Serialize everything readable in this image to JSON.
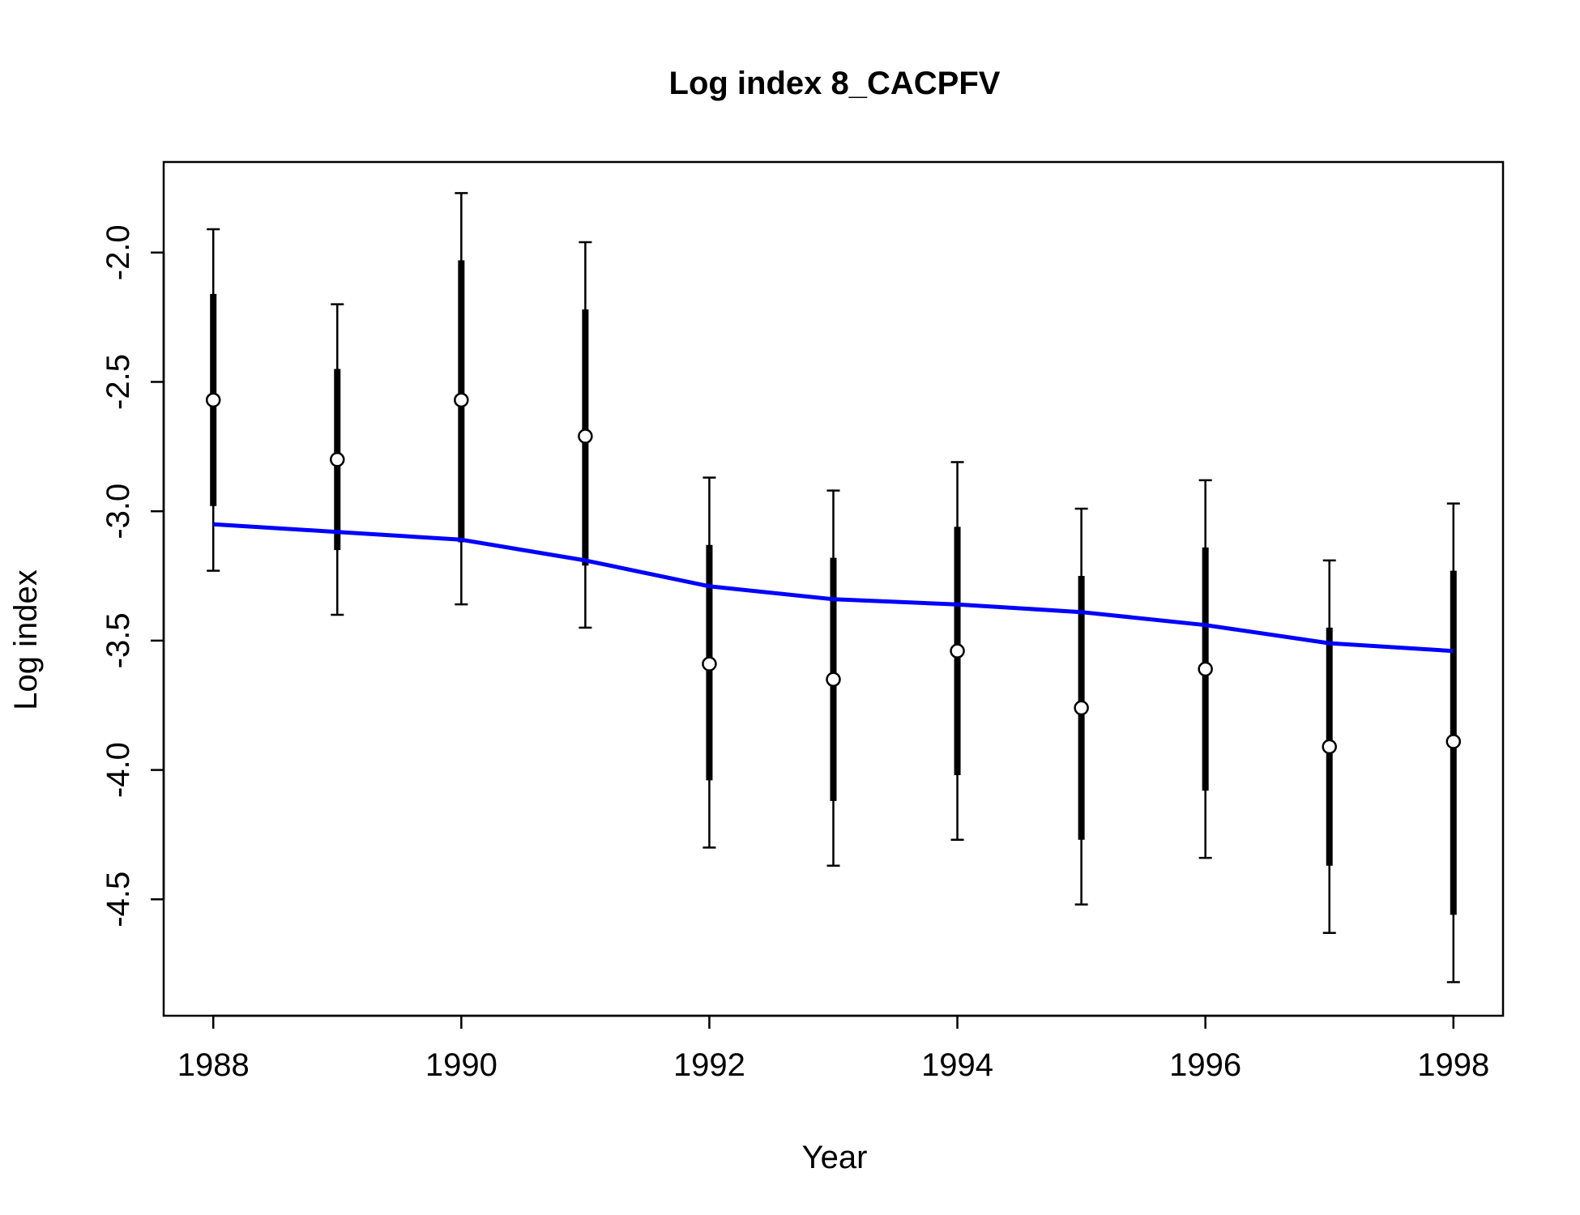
{
  "chart_data": {
    "type": "scatter",
    "title": "Log index 8_CACPFV",
    "xlabel": "Year",
    "ylabel": "Log index",
    "xlim": [
      1987.6,
      1998.4
    ],
    "ylim": [
      -4.95,
      -1.65
    ],
    "xticks": [
      1988,
      1990,
      1992,
      1994,
      1996,
      1998
    ],
    "xtick_labels": [
      "1988",
      "1990",
      "1992",
      "1994",
      "1996",
      "1998"
    ],
    "yticks": [
      -2.0,
      -2.5,
      -3.0,
      -3.5,
      -4.0,
      -4.5
    ],
    "ytick_labels": [
      "-2.0",
      "-2.5",
      "-3.0",
      "-3.5",
      "-4.0",
      "-4.5"
    ],
    "grid": false,
    "series": [
      {
        "kind": "observed_points_with_intervals",
        "color": "#000000",
        "x": [
          1988,
          1989,
          1990,
          1991,
          1992,
          1993,
          1994,
          1995,
          1996,
          1997,
          1998
        ],
        "values": [
          -2.57,
          -2.8,
          -2.57,
          -2.71,
          -3.59,
          -3.65,
          -3.54,
          -3.76,
          -3.61,
          -3.91,
          -3.89
        ],
        "inner_low": [
          -2.98,
          -3.15,
          -3.12,
          -3.21,
          -4.04,
          -4.12,
          -4.02,
          -4.27,
          -4.08,
          -4.37,
          -4.56
        ],
        "inner_high": [
          -2.16,
          -2.45,
          -2.03,
          -2.22,
          -3.13,
          -3.18,
          -3.06,
          -3.25,
          -3.14,
          -3.45,
          -3.23
        ],
        "outer_low": [
          -3.23,
          -3.4,
          -3.36,
          -3.45,
          -4.3,
          -4.37,
          -4.27,
          -4.52,
          -4.34,
          -4.63,
          -4.82
        ],
        "outer_high": [
          -1.91,
          -2.2,
          -1.77,
          -1.96,
          -2.87,
          -2.92,
          -2.81,
          -2.99,
          -2.88,
          -3.19,
          -2.97
        ]
      },
      {
        "kind": "fitted_line",
        "color": "#0000FF",
        "x": [
          1988,
          1989,
          1990,
          1991,
          1992,
          1993,
          1994,
          1995,
          1996,
          1997,
          1998
        ],
        "values": [
          -3.05,
          -3.08,
          -3.11,
          -3.19,
          -3.29,
          -3.34,
          -3.36,
          -3.39,
          -3.44,
          -3.51,
          -3.54
        ]
      }
    ]
  }
}
